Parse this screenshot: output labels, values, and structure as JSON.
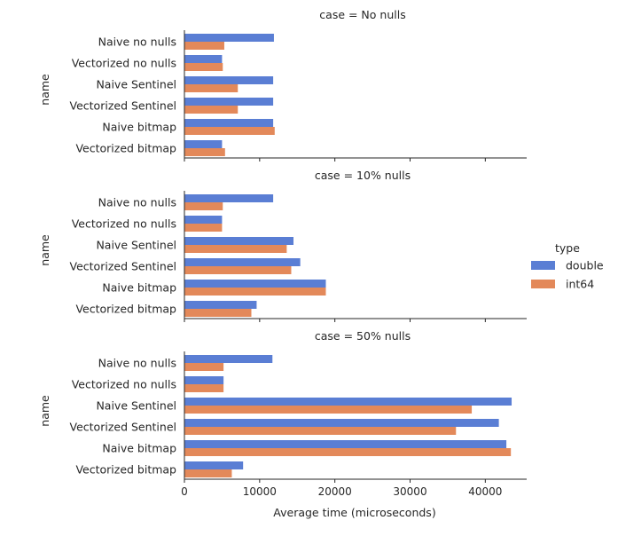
{
  "chart_data": {
    "type": "bar",
    "orientation": "horizontal",
    "facet_variable": "case",
    "facets": [
      {
        "title": "case = No nulls",
        "categories": [
          "Naive no nulls",
          "Vectorized no nulls",
          "Naive Sentinel",
          "Vectorized Sentinel",
          "Naive bitmap",
          "Vectorized bitmap"
        ],
        "series": [
          {
            "name": "double",
            "values": [
              11900,
              5000,
              11800,
              11800,
              11800,
              5000
            ]
          },
          {
            "name": "int64",
            "values": [
              5300,
              5100,
              7100,
              7100,
              12000,
              5400
            ]
          }
        ]
      },
      {
        "title": "case = 10% nulls",
        "categories": [
          "Naive no nulls",
          "Vectorized no nulls",
          "Naive Sentinel",
          "Vectorized Sentinel",
          "Naive bitmap",
          "Vectorized bitmap"
        ],
        "series": [
          {
            "name": "double",
            "values": [
              11800,
              5000,
              14500,
              15400,
              18800,
              9600
            ]
          },
          {
            "name": "int64",
            "values": [
              5100,
              5000,
              13600,
              14200,
              18800,
              8900
            ]
          }
        ]
      },
      {
        "title": "case = 50% nulls",
        "categories": [
          "Naive no nulls",
          "Vectorized no nulls",
          "Naive Sentinel",
          "Vectorized Sentinel",
          "Naive bitmap",
          "Vectorized bitmap"
        ],
        "series": [
          {
            "name": "double",
            "values": [
              11700,
              5200,
              43500,
              41800,
              42800,
              7800
            ]
          },
          {
            "name": "int64",
            "values": [
              5200,
              5200,
              38200,
              36100,
              43400,
              6300
            ]
          }
        ]
      }
    ],
    "xlabel": "Average time (microseconds)",
    "ylabel": "name",
    "xlim": [
      0,
      45500
    ],
    "xticks": [
      0,
      10000,
      20000,
      30000,
      40000
    ],
    "legend": {
      "title": "type",
      "placement": "right",
      "entries": [
        "double",
        "int64"
      ]
    },
    "colors": {
      "double": "#5a7ed4",
      "int64": "#e3895a"
    },
    "grid": false
  }
}
